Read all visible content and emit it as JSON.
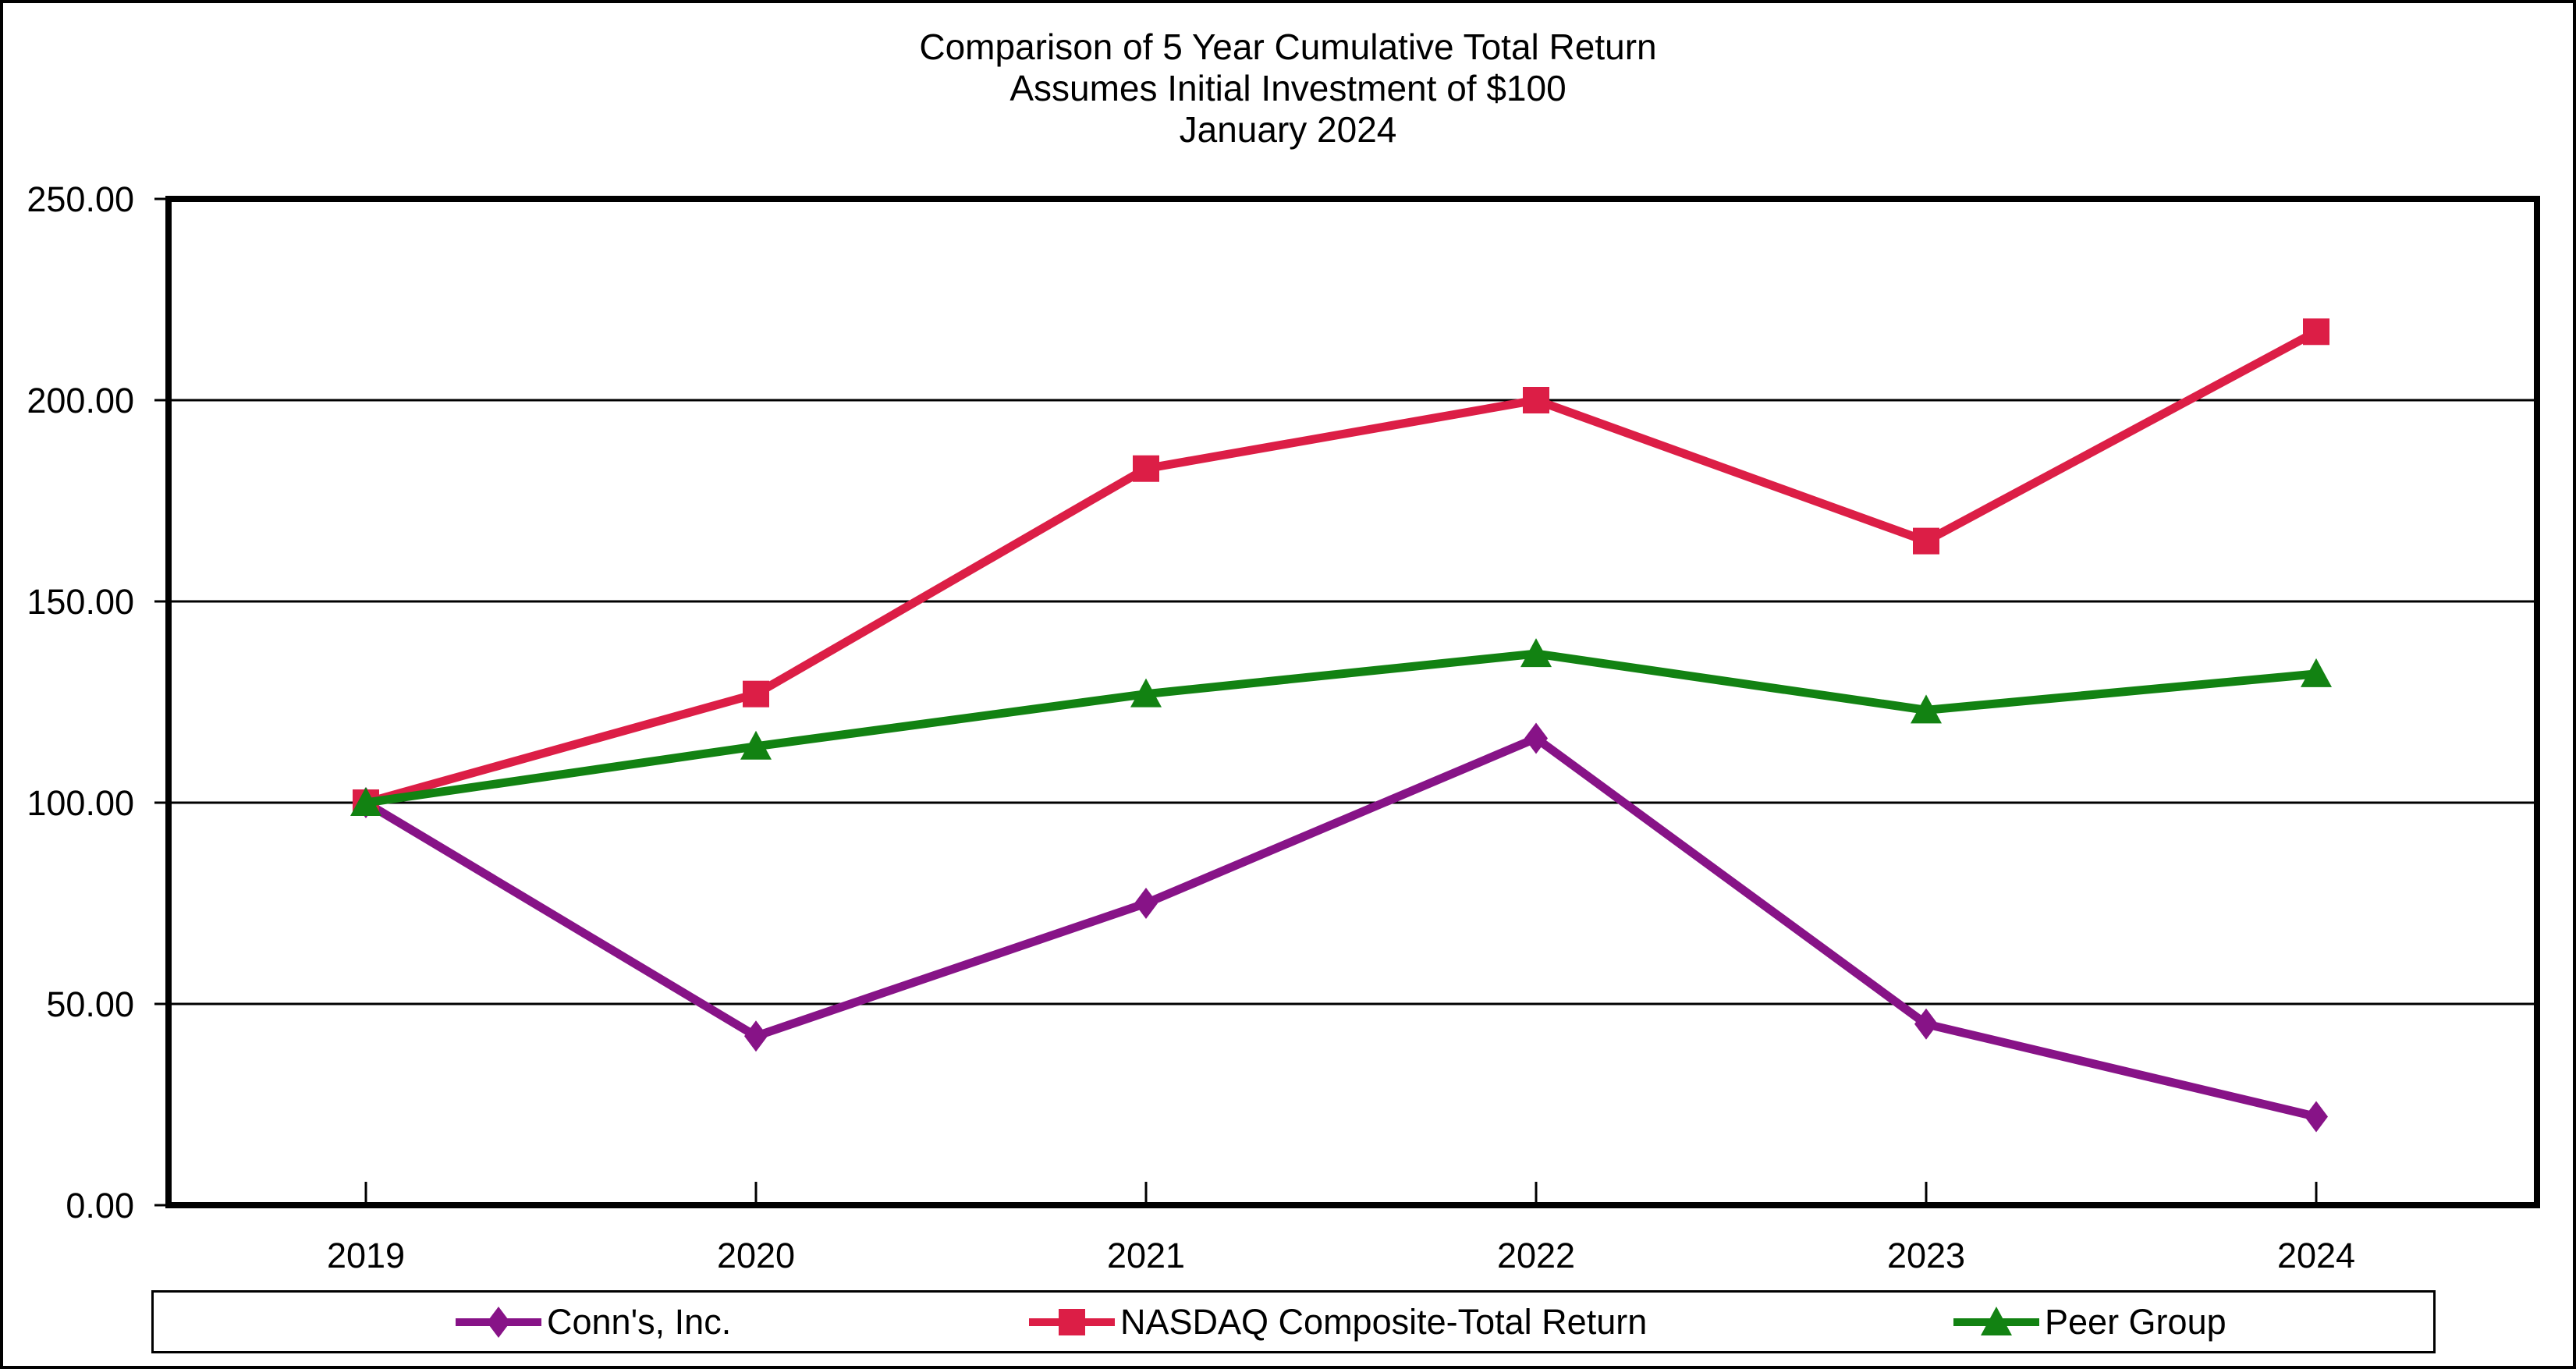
{
  "figure": {
    "background": "#ffffff",
    "border_color": "#000000"
  },
  "chart_data": {
    "type": "line",
    "title": "Comparison of 5 Year Cumulative Total Return",
    "subtitle": "Assumes Initial Investment of $100",
    "date_label": "January 2024",
    "categories": [
      "2019",
      "2020",
      "2021",
      "2022",
      "2023",
      "2024"
    ],
    "series": [
      {
        "name": "Conn's, Inc.",
        "marker": "diamond",
        "color": "#871387",
        "values": [
          100,
          42,
          75,
          116,
          45,
          22
        ]
      },
      {
        "name": "NASDAQ Composite-Total Return",
        "marker": "square",
        "color": "#DC1E46",
        "values": [
          100,
          127,
          183,
          200,
          165,
          217
        ]
      },
      {
        "name": "Peer Group",
        "marker": "triangle",
        "color": "#128212",
        "values": [
          100,
          114,
          127,
          137,
          123,
          132
        ]
      }
    ],
    "y_ticks": [
      "0.00",
      "50.00",
      "100.00",
      "150.00",
      "200.00",
      "250.00"
    ],
    "ylim": [
      0,
      250
    ],
    "xlabel": "",
    "ylabel": "",
    "grid": true,
    "legend_position": "bottom",
    "axis_color": "#000000"
  }
}
